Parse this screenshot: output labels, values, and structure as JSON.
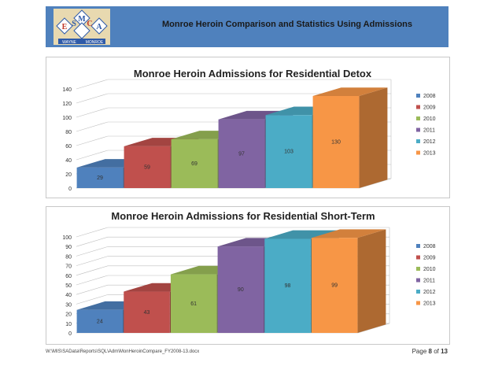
{
  "header": {
    "title": "Monroe Heroin Comparison and Statistics Using Admissions",
    "logo": {
      "letters": [
        "E",
        "M",
        "S",
        "C",
        "A"
      ],
      "words": [
        "WAYNE",
        "MONROE"
      ],
      "colors": {
        "red": "#c0392b",
        "blue": "#2e5aa8",
        "tan": "#e8d9b0"
      }
    }
  },
  "footer": {
    "path": "W:\\MIS\\SAData\\Reports\\SQL\\Adm\\MonHeroinCompare_FY2008-13.docx",
    "page_word": "Page",
    "page_current": "8",
    "page_of": "of",
    "page_total": "13"
  },
  "charts": [
    {
      "title": "Monroe Heroin Admissions for Residential Detox",
      "type": "bar",
      "categories": [
        "2008",
        "2009",
        "2010",
        "2011",
        "2012",
        "2013"
      ],
      "values": [
        29,
        59,
        69,
        97,
        103,
        130
      ],
      "ylim": [
        0,
        140
      ],
      "yticks": [
        0,
        20,
        40,
        60,
        80,
        100,
        120,
        140
      ],
      "legend": "right",
      "grid": true
    },
    {
      "title": "Monroe Heroin Admissions for Residential Short-Term",
      "type": "bar",
      "categories": [
        "2008",
        "2009",
        "2010",
        "2011",
        "2012",
        "2013"
      ],
      "values": [
        24,
        43,
        61,
        90,
        98,
        99
      ],
      "ylim": [
        0,
        100
      ],
      "yticks": [
        0,
        10,
        20,
        30,
        40,
        50,
        60,
        70,
        80,
        90,
        100
      ],
      "legend": "right",
      "grid": true
    }
  ],
  "chart_data": [
    {
      "type": "bar",
      "title": "Monroe Heroin Admissions for Residential Detox",
      "categories": [
        "2008",
        "2009",
        "2010",
        "2011",
        "2012",
        "2013"
      ],
      "values": [
        29,
        59,
        69,
        97,
        103,
        130
      ],
      "xlabel": "",
      "ylabel": "",
      "ylim": [
        0,
        140
      ],
      "grid": true,
      "legend": "right"
    },
    {
      "type": "bar",
      "title": "Monroe Heroin Admissions for Residential Short-Term",
      "categories": [
        "2008",
        "2009",
        "2010",
        "2011",
        "2012",
        "2013"
      ],
      "values": [
        24,
        43,
        61,
        90,
        98,
        99
      ],
      "xlabel": "",
      "ylabel": "",
      "ylim": [
        0,
        100
      ],
      "grid": true,
      "legend": "right"
    }
  ],
  "series_colors": [
    "#4f81bd",
    "#c0504d",
    "#9bbb59",
    "#8064a2",
    "#4bacc6",
    "#f79646"
  ]
}
